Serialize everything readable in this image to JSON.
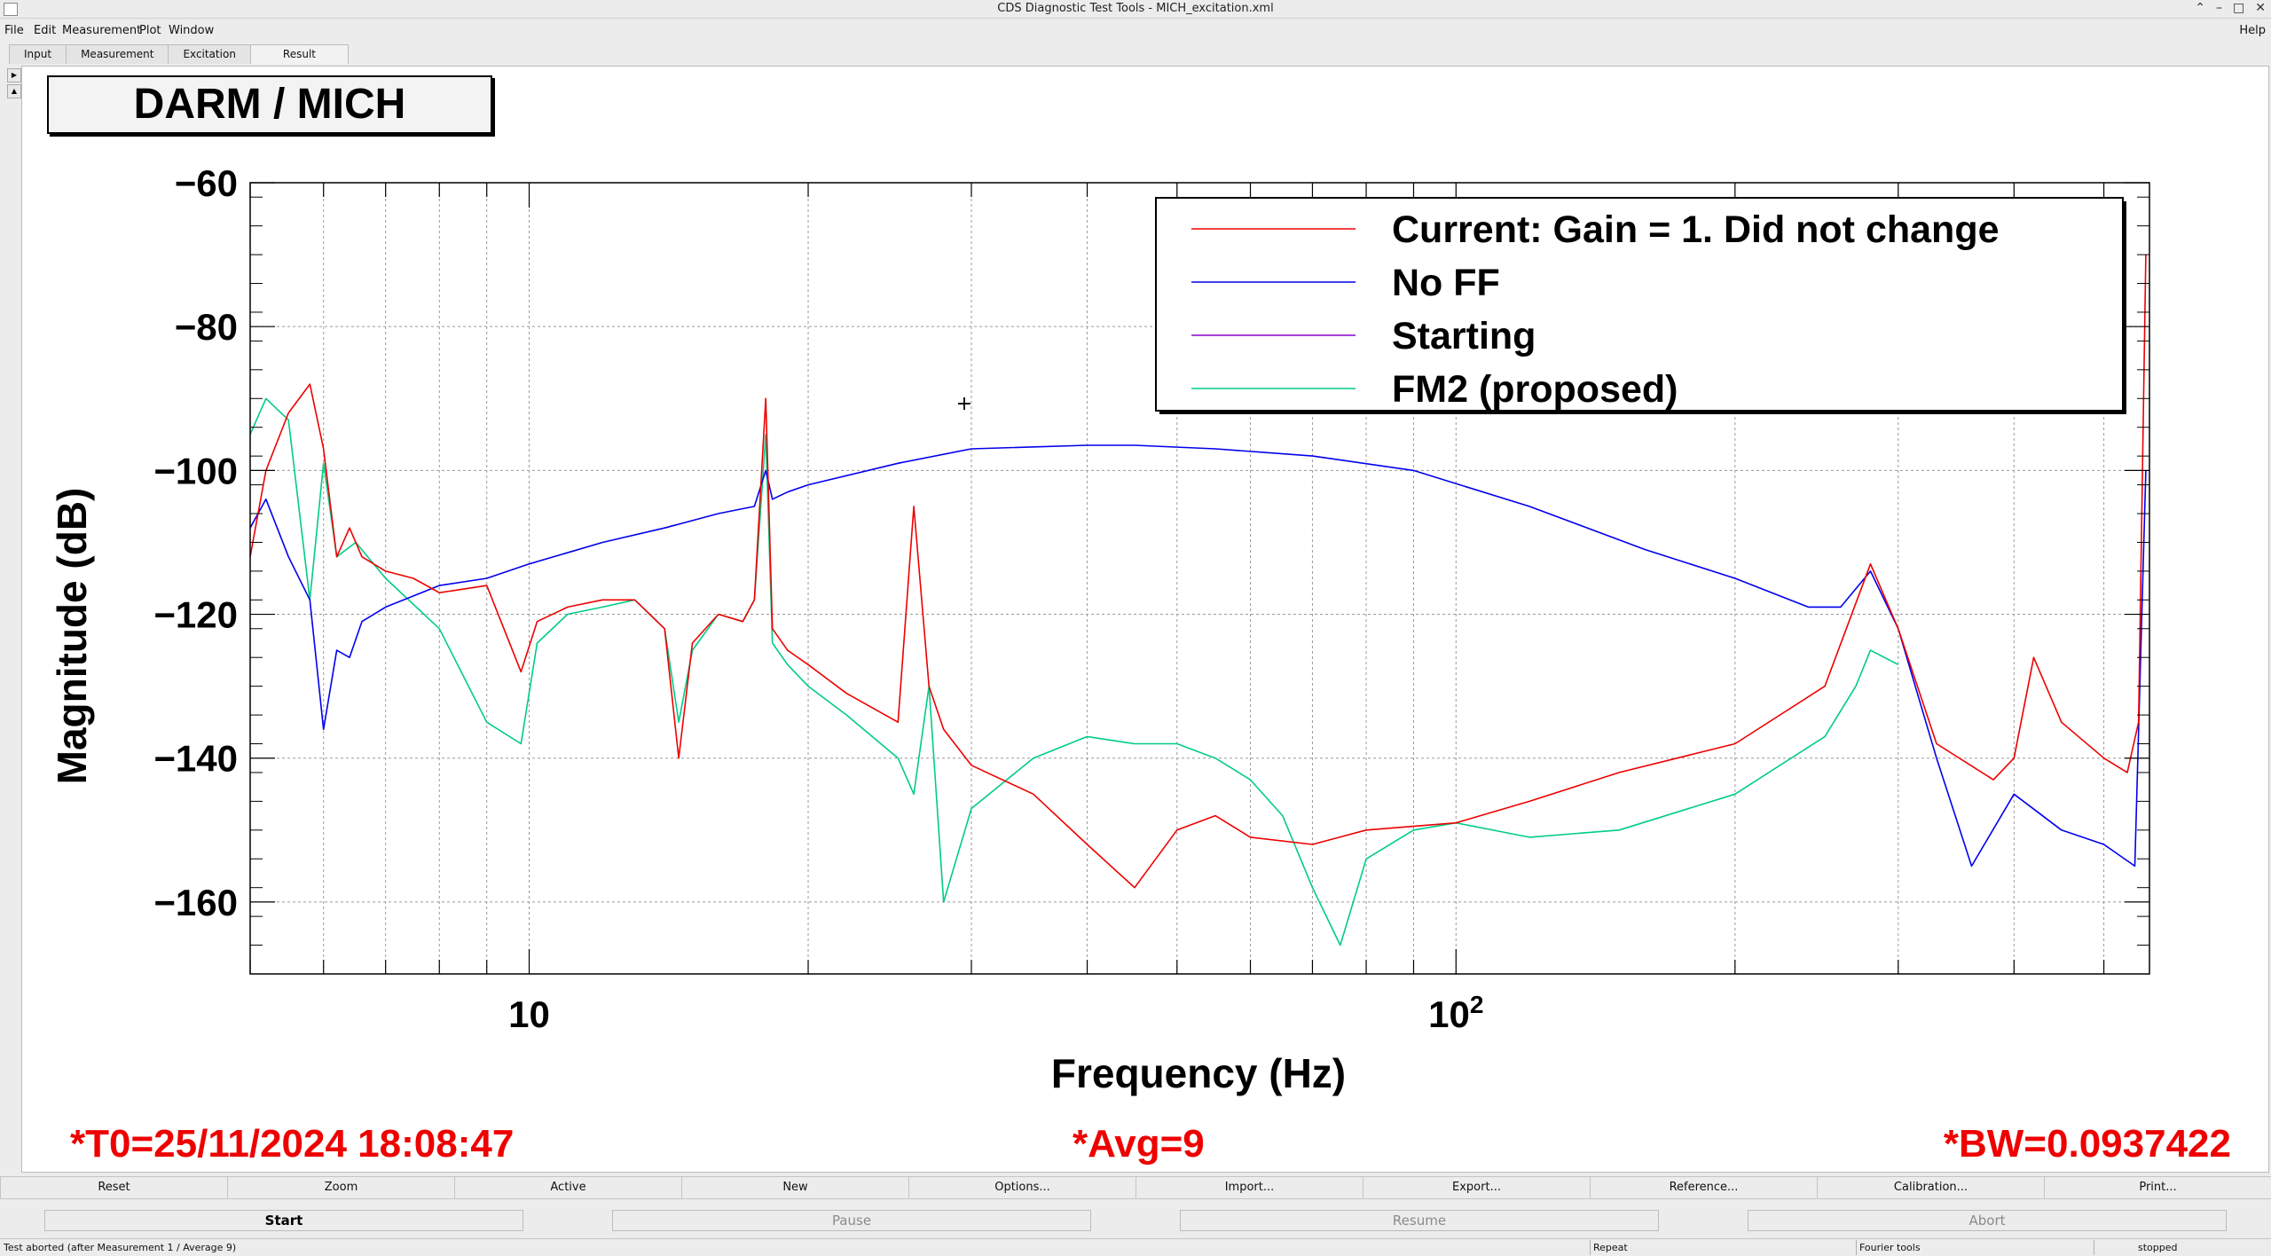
{
  "window": {
    "title": "CDS Diagnostic Test Tools - MICH_excitation.xml",
    "help": "Help"
  },
  "menu": [
    "File",
    "Edit",
    "Measurement",
    "Plot",
    "Window"
  ],
  "tabs": [
    "Input",
    "Measurement",
    "Excitation",
    "Result"
  ],
  "plot_title": "DARM / MICH",
  "footer": {
    "t0": "*T0=25/11/2024 18:08:47",
    "avg": "*Avg=9",
    "bw": "*BW=0.0937422"
  },
  "colors": {
    "current": "#ee0000",
    "noff": "#0000ee",
    "starting": "#8800cc",
    "fm2": "#00cc88",
    "footer_text": "#ee0000"
  },
  "chart_data": {
    "type": "line",
    "xlabel": "Frequency (Hz)",
    "ylabel": "Magnitude (dB)",
    "x_scale": "log",
    "xlim": [
      5,
      560
    ],
    "ylim": [
      -170,
      -60
    ],
    "x_tick_labels": [
      {
        "value": 10,
        "base": "10",
        "exp": ""
      },
      {
        "value": 100,
        "base": "10",
        "exp": "2"
      }
    ],
    "y_ticks": [
      -60,
      -80,
      -100,
      -120,
      -140,
      -160
    ],
    "y_tick_labels": [
      "−60",
      "−80",
      "−100",
      "−120",
      "−140",
      "−160"
    ],
    "grid": true,
    "legend_position": "top-right",
    "series": [
      {
        "name": "Current: Gain = 1. Did not change",
        "color": "#ee0000",
        "x": [
          5.0,
          5.2,
          5.5,
          5.8,
          6.0,
          6.2,
          6.4,
          6.6,
          7.0,
          7.5,
          8.0,
          9.0,
          9.8,
          10.2,
          11.0,
          12.0,
          13.0,
          14.0,
          14.5,
          15.0,
          16.0,
          17.0,
          17.5,
          18.0,
          18.3,
          19.0,
          20.0,
          22.0,
          25.0,
          26.0,
          27.0,
          28.0,
          30.0,
          35.0,
          40.0,
          45.0,
          50.0,
          55.0,
          60.0,
          70.0,
          80.0,
          100.0,
          120.0,
          150.0,
          200.0,
          250.0,
          280.0,
          300.0,
          330.0,
          380.0,
          400.0,
          420.0,
          450.0,
          500.0,
          530.0,
          545.0,
          555.0
        ],
        "y": [
          -112,
          -100,
          -92,
          -88,
          -97,
          -112,
          -108,
          -112,
          -114,
          -115,
          -117,
          -116,
          -128,
          -121,
          -119,
          -118,
          -118,
          -122,
          -140,
          -124,
          -120,
          -121,
          -118,
          -90,
          -122,
          -125,
          -127,
          -131,
          -135,
          -105,
          -130,
          -136,
          -141,
          -145,
          -152,
          -158,
          -150,
          -148,
          -151,
          -152,
          -150,
          -149,
          -146,
          -142,
          -138,
          -130,
          -113,
          -122,
          -138,
          -143,
          -140,
          -126,
          -135,
          -140,
          -142,
          -135,
          -70
        ]
      },
      {
        "name": "No FF",
        "color": "#0000ee",
        "x": [
          5.0,
          5.2,
          5.5,
          5.8,
          6.0,
          6.2,
          6.4,
          6.6,
          7.0,
          8.0,
          9.0,
          10.0,
          12.0,
          14.0,
          16.0,
          17.5,
          18.0,
          18.3,
          19.0,
          20.0,
          25.0,
          30.0,
          40.0,
          45.0,
          55.0,
          70.0,
          90.0,
          120.0,
          160.0,
          200.0,
          240.0,
          260.0,
          280.0,
          300.0,
          330.0,
          360.0,
          400.0,
          450.0,
          500.0,
          540.0,
          555.0
        ],
        "y": [
          -108,
          -104,
          -112,
          -118,
          -136,
          -125,
          -126,
          -121,
          -119,
          -116,
          -115,
          -113,
          -110,
          -108,
          -106,
          -105,
          -100,
          -104,
          -103,
          -102,
          -99,
          -97,
          -96.5,
          -96.5,
          -97,
          -98,
          -100,
          -105,
          -111,
          -115,
          -119,
          -119,
          -114,
          -122,
          -140,
          -155,
          -145,
          -150,
          -152,
          -155,
          -100
        ]
      },
      {
        "name": "Starting",
        "color": "#8800cc",
        "x": [],
        "y": []
      },
      {
        "name": "FM2 (proposed)",
        "color": "#00cc88",
        "x": [
          5.0,
          5.2,
          5.5,
          5.8,
          6.0,
          6.2,
          6.5,
          7.0,
          8.0,
          9.0,
          9.8,
          10.2,
          11.0,
          12.0,
          13.0,
          14.0,
          14.5,
          15.0,
          16.0,
          17.0,
          17.5,
          18.0,
          18.3,
          19.0,
          20.0,
          22.0,
          25.0,
          26.0,
          27.0,
          28.0,
          30.0,
          35.0,
          40.0,
          45.0,
          50.0,
          55.0,
          60.0,
          65.0,
          70.0,
          75.0,
          80.0,
          90.0,
          100.0,
          120.0,
          150.0,
          200.0,
          250.0,
          270.0,
          280.0,
          300.0
        ],
        "y": [
          -95,
          -90,
          -93,
          -118,
          -99,
          -112,
          -110,
          -115,
          -122,
          -135,
          -138,
          -124,
          -120,
          -119,
          -118,
          -122,
          -135,
          -125,
          -120,
          -121,
          -118,
          -95,
          -124,
          -127,
          -130,
          -134,
          -140,
          -145,
          -130,
          -160,
          -147,
          -140,
          -137,
          -138,
          -138,
          -140,
          -143,
          -148,
          -158,
          -166,
          -154,
          -150,
          -149,
          -151,
          -150,
          -145,
          -137,
          -130,
          -125,
          -127
        ]
      }
    ]
  },
  "toolbar": [
    "Reset",
    "Zoom",
    "Active",
    "New",
    "Options...",
    "Import...",
    "Export...",
    "Reference...",
    "Calibration...",
    "Print..."
  ],
  "controls": {
    "start": "Start",
    "pause": "Pause",
    "resume": "Resume",
    "abort": "Abort"
  },
  "status": {
    "message": "Test aborted (after Measurement 1 / Average 9)",
    "repeat": "Repeat",
    "tools": "Fourier tools",
    "state": "stopped"
  }
}
